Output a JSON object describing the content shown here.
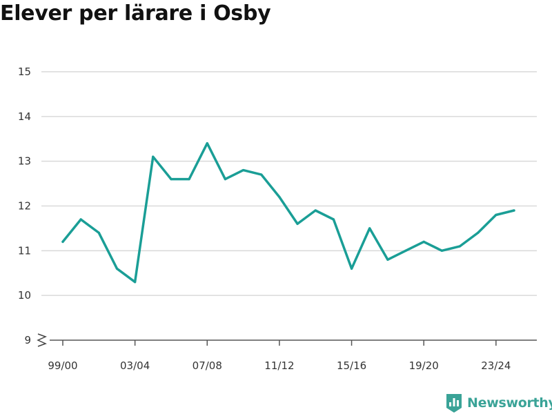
{
  "chart_data": {
    "type": "line",
    "title": "Elever per lärare i Osby",
    "xlabel": "",
    "ylabel": "",
    "ylim": [
      9,
      15
    ],
    "y_ticks": [
      9,
      10,
      11,
      12,
      13,
      14,
      15
    ],
    "axis_break": true,
    "grid": true,
    "x": [
      "99/00",
      "00/01",
      "01/02",
      "02/03",
      "03/04",
      "04/05",
      "05/06",
      "06/07",
      "07/08",
      "08/09",
      "09/10",
      "10/11",
      "11/12",
      "12/13",
      "13/14",
      "14/15",
      "15/16",
      "16/17",
      "17/18",
      "18/19",
      "19/20",
      "20/21",
      "21/22",
      "22/23",
      "23/24",
      "24/25"
    ],
    "x_tick_labels": [
      "99/00",
      "03/04",
      "07/08",
      "11/12",
      "15/16",
      "19/20",
      "23/24"
    ],
    "series": [
      {
        "values": [
          11.2,
          11.7,
          11.4,
          10.6,
          10.3,
          13.1,
          12.6,
          12.6,
          13.4,
          12.6,
          12.8,
          12.7,
          12.2,
          11.6,
          11.9,
          11.7,
          10.6,
          11.5,
          10.8,
          11.0,
          11.2,
          11.0,
          11.1,
          11.4,
          11.8,
          11.9
        ],
        "color": "#1a9e96"
      }
    ]
  },
  "brand": {
    "name": "Newsworthy",
    "color": "#3aa397",
    "icon": "bar-chart-logo-icon"
  }
}
